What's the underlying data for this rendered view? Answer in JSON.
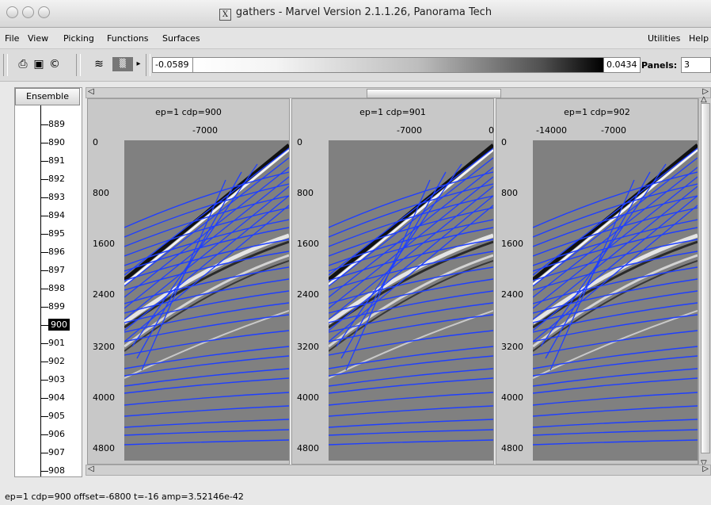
{
  "window": {
    "title": "gathers - Marvel Version 2.1.1.26, Panorama Tech",
    "title_x_icon": "X"
  },
  "menu": {
    "items": [
      "File",
      "View",
      "Picking",
      "Functions",
      "Surfaces"
    ],
    "right_items": [
      "Utilities",
      "Help"
    ]
  },
  "toolbar": {
    "min_value": "-0.0589",
    "max_value": "0.0434",
    "panels_label": "Panels:",
    "panels_value": "3",
    "icons": [
      "print-icon",
      "save-icon",
      "copyright-icon",
      "wiggle-display-icon",
      "density-display-icon"
    ]
  },
  "ensemble": {
    "header": "Ensemble",
    "items": [
      "889",
      "890",
      "891",
      "892",
      "893",
      "894",
      "895",
      "896",
      "897",
      "898",
      "899",
      "900",
      "901",
      "902",
      "903",
      "904",
      "905",
      "906",
      "907",
      "908"
    ],
    "selected": "900"
  },
  "panels": [
    {
      "title": "ep=1 cdp=900",
      "x_ticks": [
        "-7000"
      ],
      "y_ticks": [
        "0",
        "800",
        "1600",
        "2400",
        "3200",
        "4000",
        "4800"
      ]
    },
    {
      "title": "ep=1 cdp=901",
      "x_ticks": [
        "-7000",
        "0"
      ],
      "y_ticks": [
        "0",
        "800",
        "1600",
        "2400",
        "3200",
        "4000",
        "4800"
      ]
    },
    {
      "title": "ep=1 cdp=902",
      "x_ticks": [
        "-14000",
        "-7000"
      ],
      "y_ticks": [
        "0",
        "800",
        "1600",
        "2400",
        "3200",
        "4000",
        "4800"
      ]
    }
  ],
  "status": {
    "text": "ep=1 cdp=900 offset=-6800 t=-16 amp=3.52146e-42"
  },
  "colors": {
    "pick_lines": "#1f3fff",
    "plot_background": "#808080"
  }
}
